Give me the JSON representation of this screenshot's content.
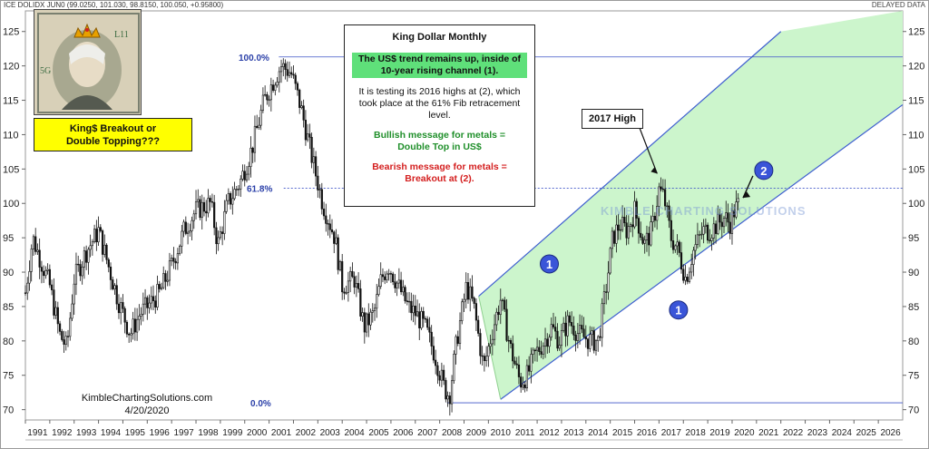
{
  "header": {
    "ticker": "ICE DOLIDX JUN0 (99.0250, 101.030, 98.8150, 100.050, +0.95800)",
    "delayed": "DELAYED DATA"
  },
  "callouts": {
    "title": "King Dollar Monthly",
    "trend": "The US$ trend remains up, inside of 10-year rising channel (1).",
    "testing": "It is testing its 2016 highs at (2), which took place at the 61% Fib retracement level.",
    "bullish_line1": "Bullish message for metals =",
    "bullish_line2": "Double Top in US$",
    "bearish_line1": "Bearish message for metals =",
    "bearish_line2": "Breakout at (2).",
    "yellow_line1": "King$ Breakout or",
    "yellow_line2": "Double Topping???",
    "high_2017": "2017 High",
    "watermark": "KIMBLE CHARTING SOLUTIONS",
    "site": "KimbleChartingSolutions.com",
    "date": "4/20/2020",
    "marker_1": "1",
    "marker_2": "2",
    "fib_100": "100.0%",
    "fib_618": "61.8%",
    "fib_0": "0.0%"
  },
  "colors": {
    "channel_fill": "#ccf5cc",
    "channel_line": "#3f5fd0",
    "marker_blue": "#3a55d8",
    "fib_line": "#3f55c8",
    "yellow_box": "#ffff00",
    "trend_box": "#5fe07a"
  },
  "chart_data": {
    "type": "candlestick",
    "title": "King Dollar Monthly",
    "x_ticks": [
      "1991",
      "1992",
      "1993",
      "1994",
      "1995",
      "1996",
      "1997",
      "1998",
      "1999",
      "2000",
      "2001",
      "2002",
      "2003",
      "2004",
      "2005",
      "2006",
      "2007",
      "2008",
      "2009",
      "2010",
      "2011",
      "2012",
      "2013",
      "2014",
      "2015",
      "2016",
      "2017",
      "2018",
      "2019",
      "2020",
      "2021",
      "2022",
      "2023",
      "2024",
      "2025",
      "2026"
    ],
    "y_ticks": [
      70,
      75,
      80,
      85,
      90,
      95,
      100,
      105,
      110,
      115,
      120,
      125
    ],
    "ylim": [
      68.5,
      128
    ],
    "price_path": [
      [
        1991.0,
        87
      ],
      [
        1991.3,
        95
      ],
      [
        1991.6,
        92
      ],
      [
        1992.0,
        88
      ],
      [
        1992.4,
        81
      ],
      [
        1992.7,
        79
      ],
      [
        1993.0,
        89
      ],
      [
        1993.5,
        93
      ],
      [
        1994.0,
        96
      ],
      [
        1994.4,
        91
      ],
      [
        1994.8,
        86
      ],
      [
        1995.3,
        81
      ],
      [
        1995.7,
        84
      ],
      [
        1996.0,
        85
      ],
      [
        1996.5,
        87
      ],
      [
        1997.0,
        91
      ],
      [
        1997.5,
        96
      ],
      [
        1998.0,
        99
      ],
      [
        1998.6,
        100
      ],
      [
        1998.9,
        94
      ],
      [
        1999.3,
        100
      ],
      [
        1999.8,
        103
      ],
      [
        2000.3,
        108
      ],
      [
        2000.8,
        115
      ],
      [
        2001.2,
        118
      ],
      [
        2001.5,
        120
      ],
      [
        2001.9,
        119
      ],
      [
        2002.3,
        114
      ],
      [
        2002.8,
        106
      ],
      [
        2003.2,
        100
      ],
      [
        2003.7,
        95
      ],
      [
        2004.0,
        88
      ],
      [
        2004.5,
        89
      ],
      [
        2004.9,
        82
      ],
      [
        2005.3,
        84
      ],
      [
        2005.6,
        89
      ],
      [
        2005.9,
        91
      ],
      [
        2006.3,
        88
      ],
      [
        2006.7,
        85
      ],
      [
        2007.0,
        84
      ],
      [
        2007.4,
        82
      ],
      [
        2007.8,
        78
      ],
      [
        2008.2,
        73
      ],
      [
        2008.4,
        72
      ],
      [
        2008.7,
        80
      ],
      [
        2009.1,
        88
      ],
      [
        2009.4,
        85
      ],
      [
        2009.8,
        76
      ],
      [
        2010.2,
        82
      ],
      [
        2010.5,
        86
      ],
      [
        2010.9,
        79
      ],
      [
        2011.3,
        74
      ],
      [
        2011.6,
        75
      ],
      [
        2011.9,
        78
      ],
      [
        2012.3,
        80
      ],
      [
        2012.6,
        82
      ],
      [
        2012.9,
        80
      ],
      [
        2013.3,
        83
      ],
      [
        2013.7,
        81
      ],
      [
        2014.2,
        80
      ],
      [
        2014.5,
        80
      ],
      [
        2014.8,
        87
      ],
      [
        2015.1,
        95
      ],
      [
        2015.4,
        97
      ],
      [
        2015.7,
        96
      ],
      [
        2016.0,
        99
      ],
      [
        2016.4,
        94
      ],
      [
        2016.7,
        96
      ],
      [
        2017.0,
        102
      ],
      [
        2017.2,
        101
      ],
      [
        2017.5,
        95
      ],
      [
        2017.8,
        93
      ],
      [
        2018.1,
        89
      ],
      [
        2018.4,
        93
      ],
      [
        2018.8,
        96
      ],
      [
        2019.1,
        96
      ],
      [
        2019.4,
        97
      ],
      [
        2019.7,
        98
      ],
      [
        2019.9,
        97
      ],
      [
        2020.1,
        99
      ],
      [
        2020.3,
        100
      ]
    ],
    "fib_levels": [
      {
        "label": "100.0%",
        "value": 121.3
      },
      {
        "label": "61.8%",
        "value": 102.2
      },
      {
        "label": "0.0%",
        "value": 71.0
      }
    ],
    "channel": {
      "lower": [
        [
          2010.5,
          71.5
        ],
        [
          2026.0,
          112.5
        ]
      ],
      "upper": [
        [
          2009.6,
          86.5
        ],
        [
          2022.0,
          125.0
        ]
      ]
    },
    "high_2017": {
      "x": 2017.0,
      "y": 103.8
    },
    "markers": [
      {
        "label": "1",
        "x": 2012.5,
        "y": 91.2
      },
      {
        "label": "1",
        "x": 2017.8,
        "y": 84.5
      },
      {
        "label": "2",
        "x": 2021.3,
        "y": 104.8
      }
    ]
  }
}
